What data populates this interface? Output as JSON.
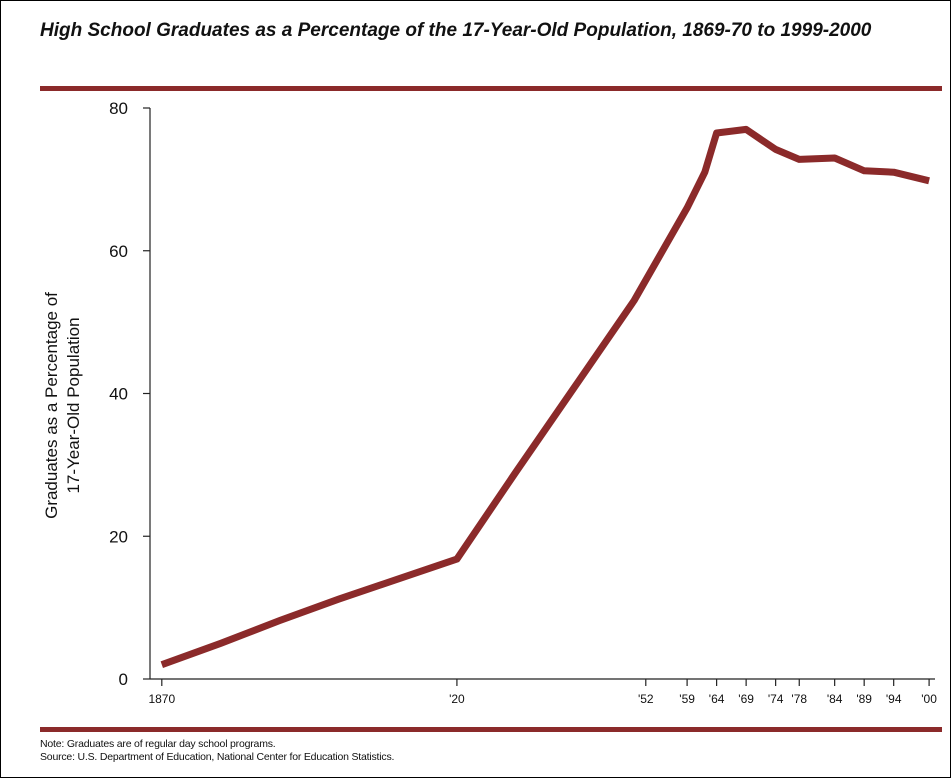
{
  "chart_data": {
    "type": "line",
    "title": "High School Graduates as a Percentage of the 17-Year-Old Population, 1869-70 to 1999-2000",
    "ylabel_lines": [
      "Graduates as a Percentage of",
      "17-Year-Old Population"
    ],
    "xlabel": "",
    "ylim": [
      0,
      80
    ],
    "yticks": [
      0,
      20,
      40,
      60,
      80
    ],
    "xlim": [
      1868,
      2001
    ],
    "xticks": [
      {
        "x": 1870,
        "label": "1870"
      },
      {
        "x": 1920,
        "label": "'20"
      },
      {
        "x": 1952,
        "label": "'52"
      },
      {
        "x": 1959,
        "label": "'59"
      },
      {
        "x": 1964,
        "label": "'64"
      },
      {
        "x": 1969,
        "label": "'69"
      },
      {
        "x": 1974,
        "label": "'74"
      },
      {
        "x": 1978,
        "label": "'78"
      },
      {
        "x": 1984,
        "label": "'84"
      },
      {
        "x": 1989,
        "label": "'89"
      },
      {
        "x": 1994,
        "label": "'94"
      },
      {
        "x": 2000,
        "label": "'00"
      }
    ],
    "grid": false,
    "series": [
      {
        "color": "#8b2a2a",
        "x": [
          1870,
          1880,
          1890,
          1900,
          1910,
          1920,
          1930,
          1940,
          1950,
          1959,
          1962,
          1964,
          1969,
          1974,
          1978,
          1984,
          1989,
          1994,
          2000
        ],
        "y": [
          2.0,
          5.0,
          8.2,
          11.2,
          14.0,
          16.8,
          29.0,
          41.0,
          53.0,
          66.0,
          71.0,
          76.5,
          77.0,
          74.2,
          72.8,
          73.0,
          71.2,
          71.0,
          69.8
        ]
      }
    ]
  },
  "notes": {
    "note": "Note: Graduates are of regular day school programs.",
    "source": "Source: U.S. Department of Education, National Center for Education Statistics."
  }
}
